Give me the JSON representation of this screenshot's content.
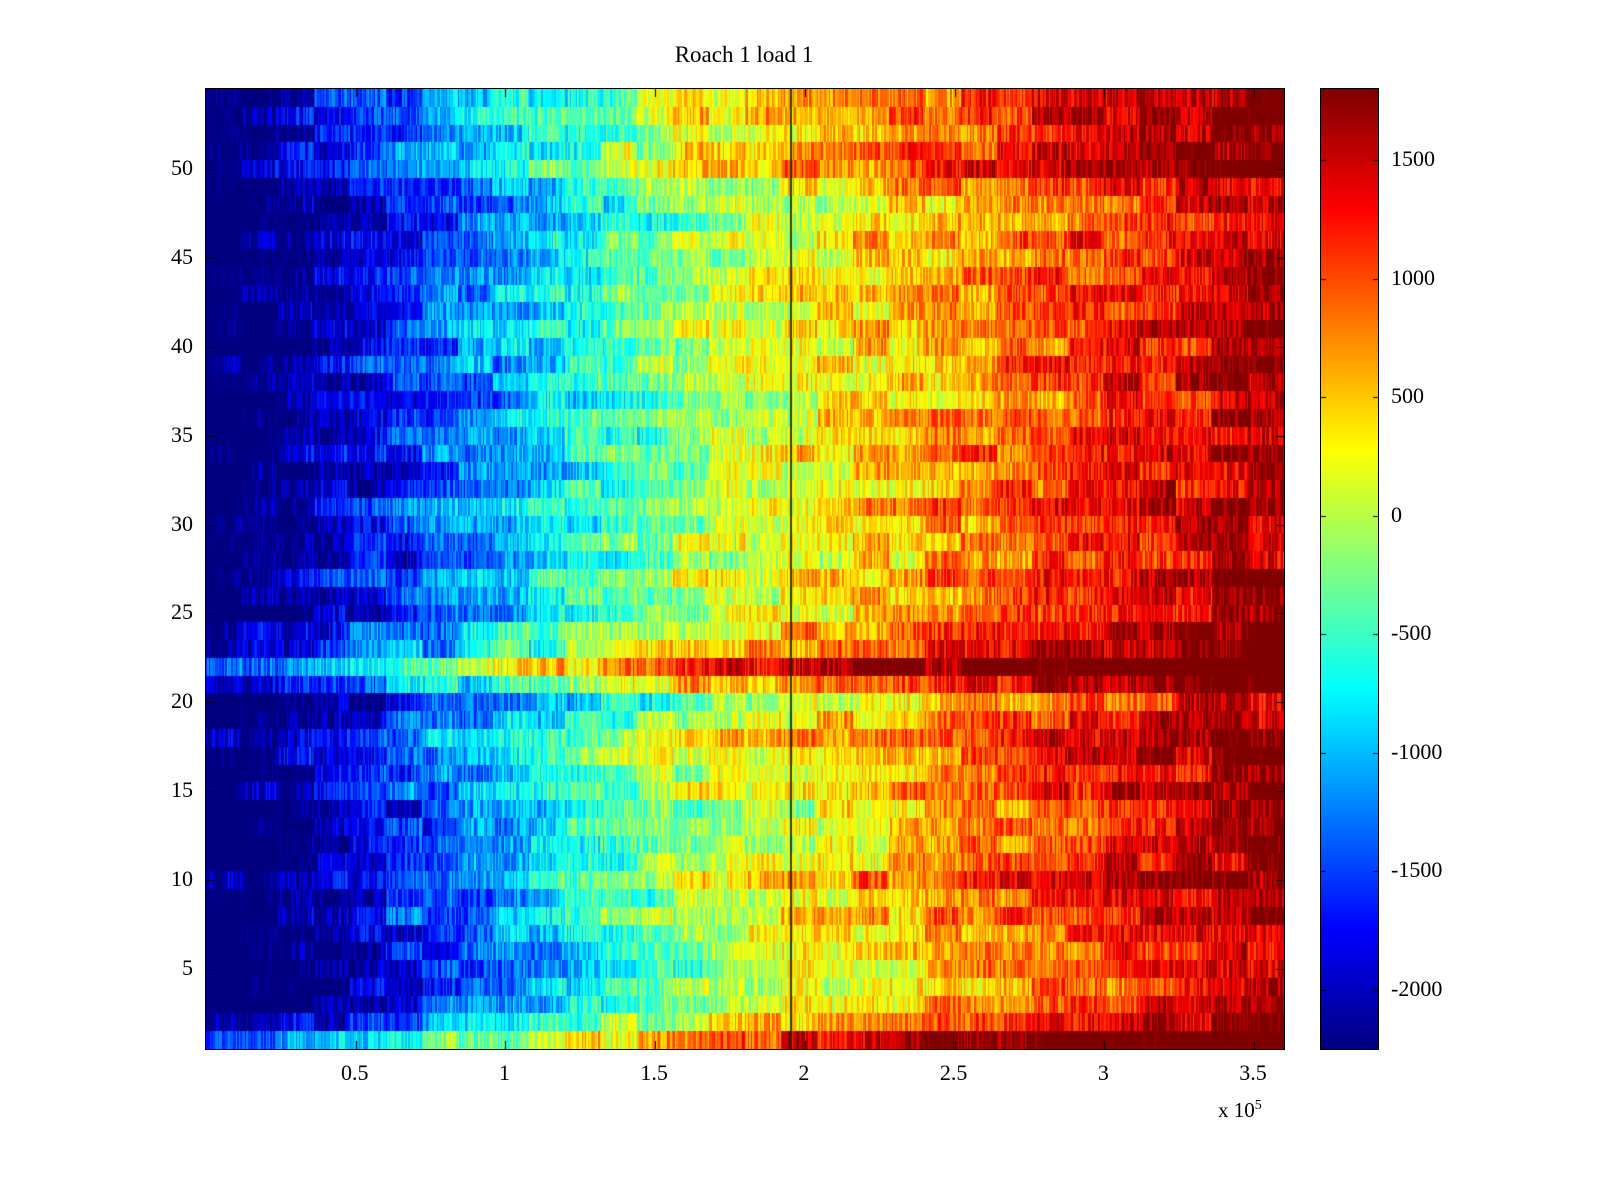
{
  "figure": {
    "background": "#ffffff",
    "axis_color": "#000000"
  },
  "chart_data": {
    "type": "heatmap",
    "title": "Roach 1 load 1",
    "colormap": "jet",
    "xlim": [
      0,
      360000
    ],
    "ylim": [
      0.5,
      54.5
    ],
    "rows": 54,
    "cols": 720,
    "clim": [
      -2250,
      1800
    ],
    "x_ticks": [
      {
        "value": 50000,
        "label": "0.5"
      },
      {
        "value": 100000,
        "label": "1"
      },
      {
        "value": 150000,
        "label": "1.5"
      },
      {
        "value": 200000,
        "label": "2"
      },
      {
        "value": 250000,
        "label": "2.5"
      },
      {
        "value": 300000,
        "label": "3"
      },
      {
        "value": 350000,
        "label": "3.5"
      }
    ],
    "x_multiplier": {
      "base": "x 10",
      "exp": "5"
    },
    "y_ticks": [
      {
        "value": 5,
        "label": "5"
      },
      {
        "value": 10,
        "label": "10"
      },
      {
        "value": 15,
        "label": "15"
      },
      {
        "value": 20,
        "label": "20"
      },
      {
        "value": 25,
        "label": "25"
      },
      {
        "value": 30,
        "label": "30"
      },
      {
        "value": 35,
        "label": "35"
      },
      {
        "value": 40,
        "label": "40"
      },
      {
        "value": 45,
        "label": "45"
      },
      {
        "value": 50,
        "label": "50"
      }
    ],
    "colorbar_ticks": [
      {
        "value": 1500,
        "label": "1500"
      },
      {
        "value": 1000,
        "label": "1000"
      },
      {
        "value": 500,
        "label": "500"
      },
      {
        "value": 0,
        "label": "0"
      },
      {
        "value": -500,
        "label": "-500"
      },
      {
        "value": -1000,
        "label": "-1000"
      },
      {
        "value": -1500,
        "label": "-1500"
      },
      {
        "value": -2000,
        "label": "-2000"
      }
    ],
    "annotations": {
      "dark_line_x": 195000
    },
    "value_model": {
      "vmin": -2600,
      "vmax": 1750,
      "zero_at": 0.45,
      "noise": 700,
      "coarse_noise": 600,
      "coarse_block": 24,
      "seed": 42,
      "row_offsets": [
        900,
        150,
        -150,
        -280,
        -280,
        -220,
        -150,
        0,
        -120,
        200,
        0,
        -160,
        -100,
        -220,
        120,
        -60,
        160,
        280,
        0,
        -260,
        500,
        1100,
        380,
        280,
        -120,
        0,
        120,
        -160,
        0,
        -100,
        60,
        -60,
        -160,
        0,
        -100,
        -60,
        -220,
        -100,
        0,
        -160,
        60,
        -100,
        0,
        -60,
        -160,
        -100,
        -260,
        -220,
        -100,
        380,
        240,
        120,
        280,
        160
      ]
    }
  }
}
